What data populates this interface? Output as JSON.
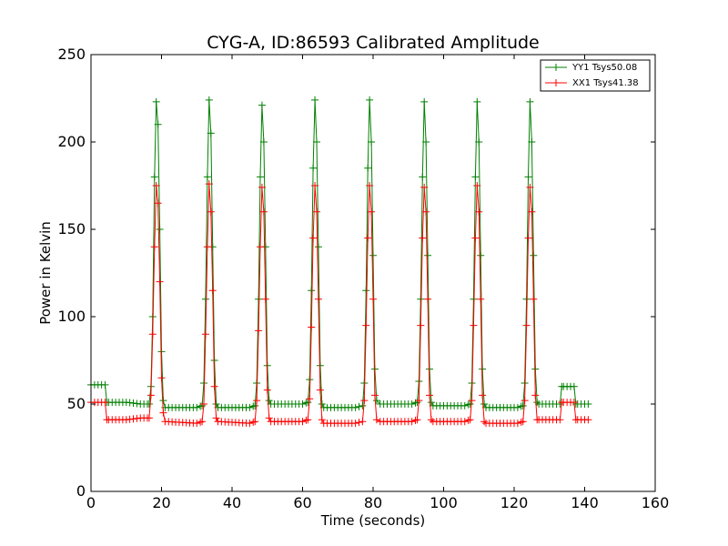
{
  "chart_data": {
    "type": "line",
    "title": "CYG-A, ID:86593 Calibrated Amplitude",
    "xlabel": "Time (seconds)",
    "ylabel": "Power in Kelvin",
    "xlim": [
      0,
      160
    ],
    "ylim": [
      0,
      250
    ],
    "xticks": [
      "0",
      "20",
      "40",
      "60",
      "80",
      "100",
      "120",
      "140",
      "160"
    ],
    "yticks": [
      "0",
      "50",
      "100",
      "150",
      "200",
      "250"
    ],
    "grid": false,
    "legend_position": "top-right",
    "marker": "plus",
    "series": [
      {
        "name": "YY1 Tsys50.08",
        "color": "#008000",
        "points": [
          [
            0,
            61
          ],
          [
            4,
            61
          ],
          [
            4.5,
            51
          ],
          [
            10,
            51
          ],
          [
            14,
            50
          ],
          [
            16.5,
            50
          ],
          [
            17,
            60
          ],
          [
            17.5,
            100
          ],
          [
            18,
            180
          ],
          [
            18.5,
            223
          ],
          [
            19,
            210
          ],
          [
            19.5,
            150
          ],
          [
            20,
            80
          ],
          [
            20.5,
            52
          ],
          [
            21,
            48
          ],
          [
            30,
            48
          ],
          [
            31.5,
            49
          ],
          [
            32,
            62
          ],
          [
            32.5,
            110
          ],
          [
            33,
            180
          ],
          [
            33.5,
            224
          ],
          [
            34,
            205
          ],
          [
            34.5,
            140
          ],
          [
            35,
            75
          ],
          [
            35.5,
            50
          ],
          [
            36,
            48
          ],
          [
            45,
            48
          ],
          [
            46.5,
            49
          ],
          [
            47,
            62
          ],
          [
            47.5,
            110
          ],
          [
            48,
            180
          ],
          [
            48.5,
            221
          ],
          [
            49,
            200
          ],
          [
            49.5,
            140
          ],
          [
            50,
            72
          ],
          [
            50.5,
            52
          ],
          [
            51,
            50
          ],
          [
            60,
            50
          ],
          [
            61.5,
            51
          ],
          [
            62,
            64
          ],
          [
            62.5,
            115
          ],
          [
            63,
            185
          ],
          [
            63.5,
            224
          ],
          [
            64,
            200
          ],
          [
            64.5,
            140
          ],
          [
            65,
            72
          ],
          [
            65.5,
            50
          ],
          [
            66,
            48
          ],
          [
            75,
            48
          ],
          [
            77,
            49
          ],
          [
            77.5,
            62
          ],
          [
            78,
            115
          ],
          [
            78.5,
            185
          ],
          [
            79,
            224
          ],
          [
            79.5,
            200
          ],
          [
            80,
            135
          ],
          [
            80.5,
            70
          ],
          [
            81,
            52
          ],
          [
            82,
            50
          ],
          [
            91,
            50
          ],
          [
            92.5,
            51
          ],
          [
            93,
            63
          ],
          [
            93.5,
            110
          ],
          [
            94,
            180
          ],
          [
            94.5,
            223
          ],
          [
            95,
            200
          ],
          [
            95.5,
            135
          ],
          [
            96,
            70
          ],
          [
            96.5,
            51
          ],
          [
            97,
            49
          ],
          [
            106,
            49
          ],
          [
            107.5,
            50
          ],
          [
            108,
            62
          ],
          [
            108.5,
            110
          ],
          [
            109,
            180
          ],
          [
            109.5,
            223
          ],
          [
            110,
            200
          ],
          [
            110.5,
            135
          ],
          [
            111,
            70
          ],
          [
            111.5,
            50
          ],
          [
            112,
            48
          ],
          [
            121,
            48
          ],
          [
            122.5,
            49
          ],
          [
            123,
            62
          ],
          [
            123.5,
            110
          ],
          [
            124,
            180
          ],
          [
            124.5,
            223
          ],
          [
            125,
            200
          ],
          [
            125.5,
            135
          ],
          [
            126,
            70
          ],
          [
            126.5,
            51
          ],
          [
            127,
            50
          ],
          [
            133,
            50
          ],
          [
            133.5,
            60
          ],
          [
            137,
            60
          ],
          [
            137.5,
            50
          ],
          [
            141,
            50
          ]
        ]
      },
      {
        "name": "XX1 Tsys41.38",
        "color": "#ff0000",
        "points": [
          [
            0,
            51
          ],
          [
            4,
            51
          ],
          [
            4.5,
            41
          ],
          [
            10,
            41
          ],
          [
            14,
            42
          ],
          [
            16.5,
            42
          ],
          [
            17,
            55
          ],
          [
            17.5,
            90
          ],
          [
            18,
            140
          ],
          [
            18.5,
            175
          ],
          [
            19,
            165
          ],
          [
            19.5,
            120
          ],
          [
            20,
            65
          ],
          [
            20.5,
            45
          ],
          [
            21,
            40
          ],
          [
            30,
            39
          ],
          [
            31.5,
            40
          ],
          [
            32,
            50
          ],
          [
            32.5,
            90
          ],
          [
            33,
            140
          ],
          [
            33.5,
            176
          ],
          [
            34,
            160
          ],
          [
            34.5,
            115
          ],
          [
            35,
            60
          ],
          [
            35.5,
            42
          ],
          [
            36,
            40
          ],
          [
            45,
            39
          ],
          [
            46.5,
            40
          ],
          [
            47,
            52
          ],
          [
            47.5,
            92
          ],
          [
            48,
            140
          ],
          [
            48.5,
            174
          ],
          [
            49,
            160
          ],
          [
            49.5,
            110
          ],
          [
            50,
            58
          ],
          [
            50.5,
            42
          ],
          [
            51,
            40
          ],
          [
            60,
            40
          ],
          [
            61.5,
            41
          ],
          [
            62,
            53
          ],
          [
            62.5,
            94
          ],
          [
            63,
            145
          ],
          [
            63.5,
            175
          ],
          [
            64,
            160
          ],
          [
            64.5,
            110
          ],
          [
            65,
            58
          ],
          [
            65.5,
            41
          ],
          [
            66,
            39
          ],
          [
            75,
            39
          ],
          [
            77,
            40
          ],
          [
            77.5,
            52
          ],
          [
            78,
            95
          ],
          [
            78.5,
            145
          ],
          [
            79,
            175
          ],
          [
            79.5,
            160
          ],
          [
            80,
            110
          ],
          [
            80.5,
            55
          ],
          [
            81,
            41
          ],
          [
            82,
            40
          ],
          [
            91,
            40
          ],
          [
            92.5,
            41
          ],
          [
            93,
            52
          ],
          [
            93.5,
            95
          ],
          [
            94,
            145
          ],
          [
            94.5,
            174
          ],
          [
            95,
            160
          ],
          [
            95.5,
            110
          ],
          [
            96,
            55
          ],
          [
            96.5,
            41
          ],
          [
            97,
            40
          ],
          [
            106,
            40
          ],
          [
            107.5,
            41
          ],
          [
            108,
            52
          ],
          [
            108.5,
            95
          ],
          [
            109,
            145
          ],
          [
            109.5,
            175
          ],
          [
            110,
            160
          ],
          [
            110.5,
            110
          ],
          [
            111,
            55
          ],
          [
            111.5,
            40
          ],
          [
            112,
            39
          ],
          [
            121,
            39
          ],
          [
            122.5,
            40
          ],
          [
            123,
            52
          ],
          [
            123.5,
            95
          ],
          [
            124,
            145
          ],
          [
            124.5,
            174
          ],
          [
            125,
            160
          ],
          [
            125.5,
            110
          ],
          [
            126,
            55
          ],
          [
            126.5,
            41
          ],
          [
            127,
            41
          ],
          [
            133,
            41
          ],
          [
            133.5,
            51
          ],
          [
            137,
            51
          ],
          [
            137.5,
            41
          ],
          [
            141,
            41
          ]
        ]
      }
    ]
  }
}
